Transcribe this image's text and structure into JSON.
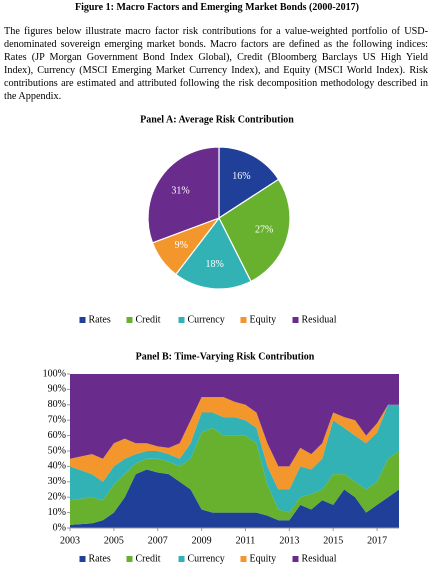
{
  "title": "Figure 1: Macro Factors and Emerging Market Bonds (2000-2017)",
  "description": "The figures below illustrate macro factor risk contributions for a value-weighted portfolio of USD-denominated sovereign emerging market bonds. Macro factors are defined as the following indices: Rates (JP Morgan Government Bond Index Global), Credit (Bloomberg Barclays US High Yield Index), Currency (MSCI Emerging Market Currency Index), and Equity (MSCI World Index). Risk contributions are estimated and attributed following the risk decomposition methodology described in the Appendix.",
  "chart_data": [
    {
      "type": "pie",
      "title": "Panel A: Average Risk Contribution",
      "categories": [
        "Rates",
        "Credit",
        "Currency",
        "Equity",
        "Residual"
      ],
      "values": [
        16,
        27,
        18,
        9,
        31
      ],
      "value_labels": [
        "16%",
        "27%",
        "18%",
        "9%",
        "31%"
      ],
      "colors": [
        "#1f3f98",
        "#67b12f",
        "#32b2b4",
        "#f3962c",
        "#6a2c8c"
      ]
    },
    {
      "type": "stacked_area",
      "title": "Panel B: Time-Varying  Risk Contribution",
      "x": [
        2003,
        2004,
        2004.5,
        2005,
        2005.5,
        2006,
        2006.5,
        2007,
        2007.5,
        2008,
        2008.5,
        2009,
        2009.5,
        2010,
        2010.5,
        2011,
        2011.5,
        2012,
        2012.5,
        2013,
        2013.5,
        2014,
        2014.5,
        2015,
        2015.5,
        2016,
        2016.5,
        2017,
        2017.5,
        2018
      ],
      "xlim": [
        2003,
        2018
      ],
      "xticks": [
        2003,
        2005,
        2007,
        2009,
        2011,
        2013,
        2015,
        2017
      ],
      "ylim": [
        0,
        100
      ],
      "yticks": [
        {
          "value": 0,
          "label": "0%"
        },
        {
          "value": 10,
          "label": "10%"
        },
        {
          "value": 20,
          "label": "20%"
        },
        {
          "value": 30,
          "label": "30%"
        },
        {
          "value": 40,
          "label": "40%"
        },
        {
          "value": 50,
          "label": "50%"
        },
        {
          "value": 60,
          "label": "60%"
        },
        {
          "value": 70,
          "label": "70%"
        },
        {
          "value": 80,
          "label": "80%"
        },
        {
          "value": 90,
          "label": "90%"
        },
        {
          "value": 100,
          "label": "100%"
        }
      ],
      "series": [
        {
          "name": "Rates",
          "color": "#1f3f98",
          "values": [
            2,
            3,
            5,
            10,
            20,
            35,
            38,
            36,
            35,
            30,
            25,
            12,
            10,
            10,
            10,
            10,
            10,
            8,
            5,
            5,
            15,
            12,
            18,
            15,
            25,
            20,
            10,
            15,
            20,
            25
          ]
        },
        {
          "name": "Credit",
          "color": "#67b12f",
          "values": [
            16,
            17,
            13,
            18,
            15,
            7,
            7,
            9,
            8,
            10,
            20,
            50,
            55,
            50,
            50,
            50,
            45,
            20,
            7,
            5,
            5,
            10,
            7,
            20,
            10,
            10,
            15,
            15,
            25,
            25
          ]
        },
        {
          "name": "Currency",
          "color": "#32b2b4",
          "values": [
            22,
            15,
            12,
            12,
            10,
            6,
            5,
            5,
            5,
            5,
            10,
            13,
            10,
            12,
            12,
            10,
            10,
            12,
            13,
            15,
            20,
            16,
            20,
            35,
            30,
            30,
            30,
            32,
            35,
            30
          ]
        },
        {
          "name": "Equity",
          "color": "#f3962c",
          "values": [
            5,
            13,
            15,
            15,
            13,
            7,
            5,
            3,
            4,
            10,
            15,
            10,
            10,
            13,
            10,
            10,
            10,
            15,
            15,
            15,
            12,
            10,
            10,
            5,
            7,
            10,
            5,
            6,
            0,
            0
          ]
        },
        {
          "name": "Residual",
          "color": "#6a2c8c",
          "values": [
            55,
            52,
            55,
            45,
            42,
            45,
            45,
            47,
            48,
            45,
            30,
            15,
            15,
            15,
            18,
            20,
            25,
            45,
            60,
            60,
            48,
            52,
            45,
            25,
            28,
            30,
            40,
            32,
            20,
            20
          ]
        }
      ]
    }
  ]
}
